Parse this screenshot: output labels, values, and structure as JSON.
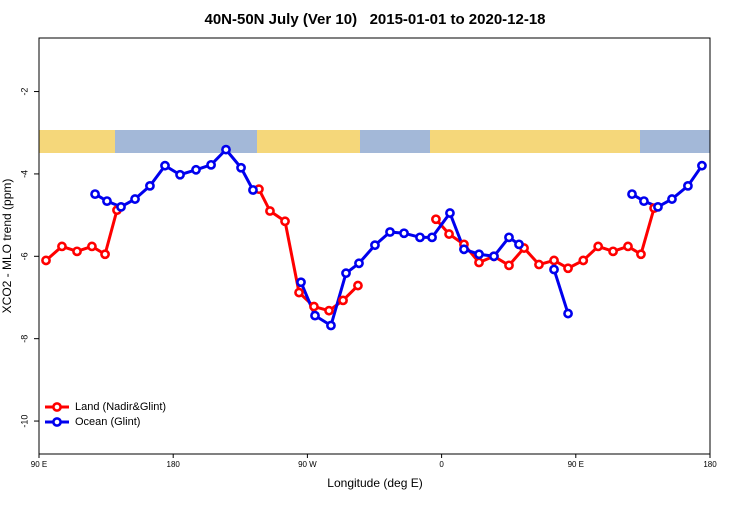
{
  "chart_data": {
    "type": "line",
    "title": "40N-50N July (Ver 10)   2015-01-01 to 2020-12-18",
    "x_label": "Longitude (deg E)",
    "y_label": "XCO2 - MLO trend (ppm)",
    "xlim": [
      90,
      540
    ],
    "xticks": [
      {
        "value": 90,
        "label": "90 E"
      },
      180,
      {
        "value": 270,
        "label": "90 W"
      },
      {
        "value": 360,
        "label": "0"
      },
      {
        "value": 450,
        "label": "90 E"
      },
      {
        "value": 540,
        "label": "180"
      }
    ],
    "ylim": [
      -10.8,
      -0.7
    ],
    "yticks": [
      -10,
      -8,
      -6,
      -4,
      -2
    ],
    "legend": "bottomleft",
    "series": [
      {
        "name": "Land (Nadir&Glint)",
        "color": "#ff0000",
        "x": [
          94.7,
          105.4,
          115.5,
          125.5,
          134.3,
          142.3,
          null,
          237.5,
          244.9,
          255.0,
          264.4,
          274.4,
          284.5,
          293.9,
          303.9,
          null,
          356.2,
          365.0,
          375.0,
          385.1,
          395.1,
          405.2,
          415.3,
          425.3,
          435.4,
          444.8,
          455.0,
          465.0,
          475.0,
          485.0,
          493.7,
          502.5
        ],
        "values": [
          -6.1,
          -5.76,
          -5.88,
          -5.76,
          -5.95,
          -4.88,
          null,
          -4.37,
          -4.9,
          -5.15,
          -6.88,
          -7.22,
          -7.32,
          -7.07,
          -6.71,
          null,
          -5.1,
          -5.46,
          -5.71,
          -6.15,
          -6.0,
          -6.22,
          -5.8,
          -6.2,
          -6.1,
          -6.29,
          -6.1,
          -5.76,
          -5.88,
          -5.76,
          -5.95,
          -4.83
        ]
      },
      {
        "name": "Ocean (Glint)",
        "color": "#0000ee",
        "x": [
          127.6,
          135.6,
          145.0,
          154.4,
          164.4,
          174.5,
          184.6,
          195.3,
          205.4,
          215.4,
          225.5,
          233.5,
          null,
          265.7,
          275.1,
          285.8,
          295.9,
          304.6,
          315.3,
          325.4,
          334.8,
          345.5,
          353.6,
          365.6,
          375.0,
          385.1,
          395.1,
          405.2,
          411.9,
          null,
          435.4,
          444.8,
          null,
          487.7,
          495.7,
          505.1,
          514.5,
          525.2,
          534.6
        ],
        "values": [
          -4.49,
          -4.66,
          -4.8,
          -4.61,
          -4.29,
          -3.8,
          -4.02,
          -3.9,
          -3.78,
          -3.41,
          -3.85,
          -4.39,
          null,
          -6.63,
          -7.44,
          -7.68,
          -6.41,
          -6.17,
          -5.73,
          -5.41,
          -5.44,
          -5.54,
          -5.54,
          -4.95,
          -5.83,
          -5.95,
          -6.0,
          -5.54,
          -5.71,
          null,
          -6.32,
          -7.39,
          null,
          -4.49,
          -4.66,
          -4.8,
          -4.61,
          -4.29,
          -3.8
        ]
      }
    ]
  }
}
